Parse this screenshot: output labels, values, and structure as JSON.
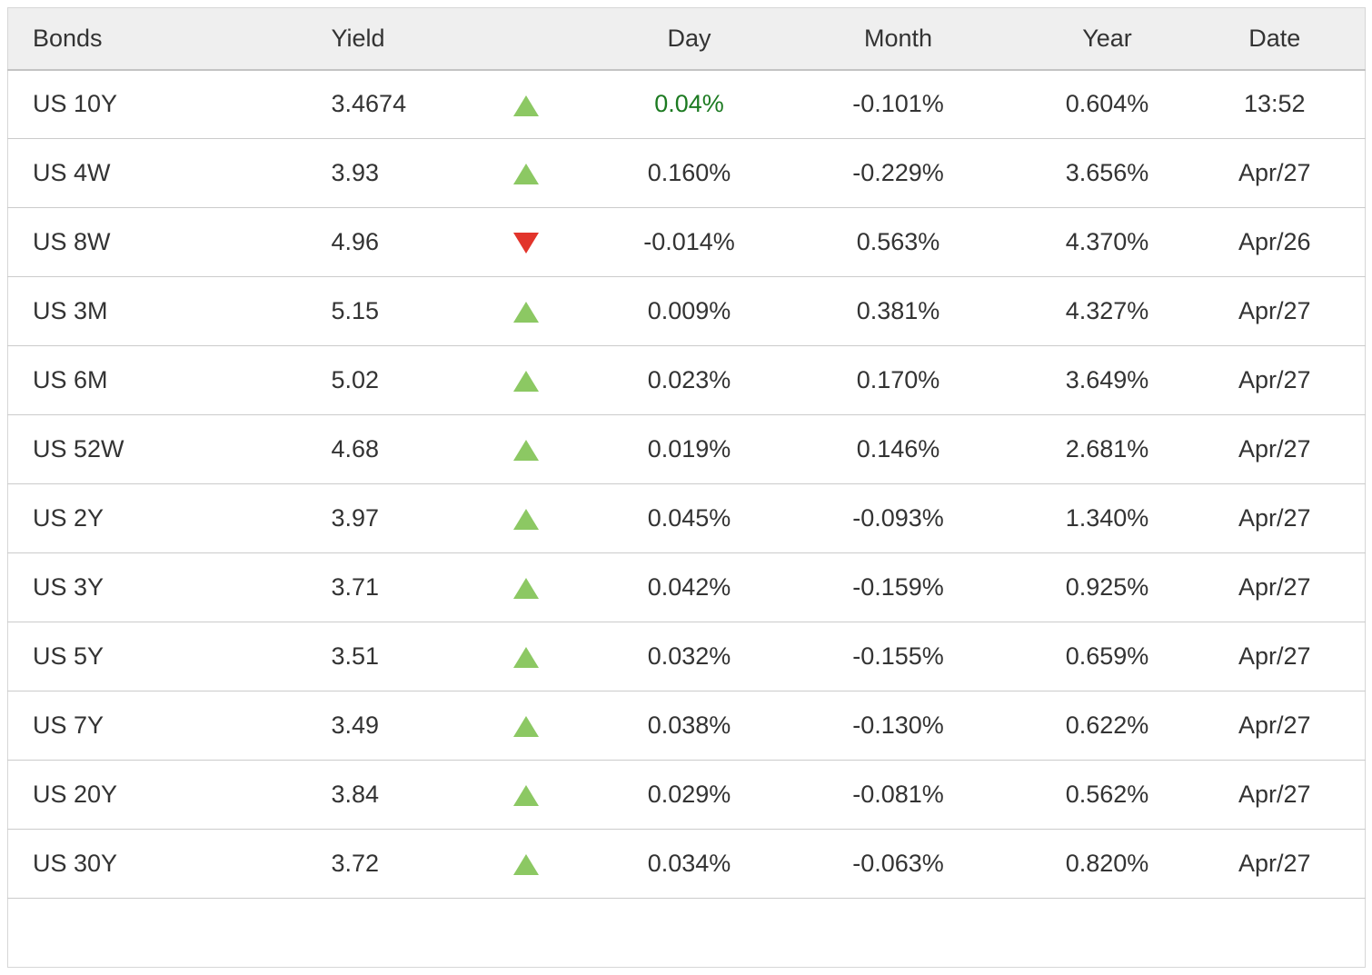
{
  "table": {
    "name": "us-bond-yields-table",
    "columns": [
      {
        "key": "bond",
        "label": "Bonds"
      },
      {
        "key": "yield",
        "label": "Yield"
      },
      {
        "key": "chg",
        "label": ""
      },
      {
        "key": "day",
        "label": "Day"
      },
      {
        "key": "month",
        "label": "Month"
      },
      {
        "key": "year",
        "label": "Year"
      },
      {
        "key": "date",
        "label": "Date"
      }
    ],
    "rows": [
      {
        "bond": "US 10Y",
        "yield": "3.4674",
        "direction": "up",
        "day": "0.04%",
        "day_color": "green",
        "month": "-0.101%",
        "year": "0.604%",
        "date": "13:52"
      },
      {
        "bond": "US 4W",
        "yield": "3.93",
        "direction": "up",
        "day": "0.160%",
        "day_color": "default",
        "month": "-0.229%",
        "year": "3.656%",
        "date": "Apr/27"
      },
      {
        "bond": "US 8W",
        "yield": "4.96",
        "direction": "down",
        "day": "-0.014%",
        "day_color": "default",
        "month": "0.563%",
        "year": "4.370%",
        "date": "Apr/26"
      },
      {
        "bond": "US 3M",
        "yield": "5.15",
        "direction": "up",
        "day": "0.009%",
        "day_color": "default",
        "month": "0.381%",
        "year": "4.327%",
        "date": "Apr/27"
      },
      {
        "bond": "US 6M",
        "yield": "5.02",
        "direction": "up",
        "day": "0.023%",
        "day_color": "default",
        "month": "0.170%",
        "year": "3.649%",
        "date": "Apr/27"
      },
      {
        "bond": "US 52W",
        "yield": "4.68",
        "direction": "up",
        "day": "0.019%",
        "day_color": "default",
        "month": "0.146%",
        "year": "2.681%",
        "date": "Apr/27"
      },
      {
        "bond": "US 2Y",
        "yield": "3.97",
        "direction": "up",
        "day": "0.045%",
        "day_color": "default",
        "month": "-0.093%",
        "year": "1.340%",
        "date": "Apr/27"
      },
      {
        "bond": "US 3Y",
        "yield": "3.71",
        "direction": "up",
        "day": "0.042%",
        "day_color": "default",
        "month": "-0.159%",
        "year": "0.925%",
        "date": "Apr/27"
      },
      {
        "bond": "US 5Y",
        "yield": "3.51",
        "direction": "up",
        "day": "0.032%",
        "day_color": "default",
        "month": "-0.155%",
        "year": "0.659%",
        "date": "Apr/27"
      },
      {
        "bond": "US 7Y",
        "yield": "3.49",
        "direction": "up",
        "day": "0.038%",
        "day_color": "default",
        "month": "-0.130%",
        "year": "0.622%",
        "date": "Apr/27"
      },
      {
        "bond": "US 20Y",
        "yield": "3.84",
        "direction": "up",
        "day": "0.029%",
        "day_color": "default",
        "month": "-0.081%",
        "year": "0.562%",
        "date": "Apr/27"
      },
      {
        "bond": "US 30Y",
        "yield": "3.72",
        "direction": "up",
        "day": "0.034%",
        "day_color": "default",
        "month": "-0.063%",
        "year": "0.820%",
        "date": "Apr/27"
      }
    ],
    "icons": {
      "up": "up-triangle-icon",
      "down": "down-triangle-icon"
    }
  },
  "colors": {
    "text": "#333333",
    "up_triangle": "#8cc863",
    "down_triangle": "#e2342b",
    "day_green_text": "#1c7a21",
    "header_background": "#efefef",
    "row_border": "#cbcbcb"
  }
}
